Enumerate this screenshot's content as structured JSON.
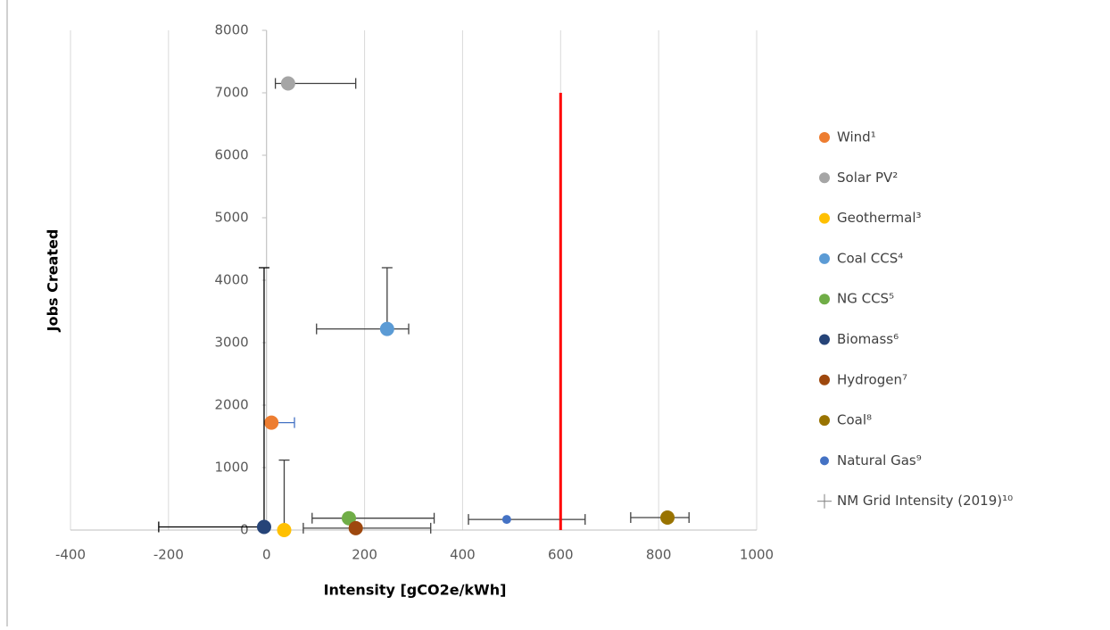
{
  "chart_data": {
    "type": "scatter",
    "x_label": "Intensity [gCO2e/kWh]",
    "y_label": "Jobs Created",
    "xlim": [
      -400,
      1000
    ],
    "xticks": [
      -400,
      -200,
      0,
      200,
      400,
      600,
      800,
      1000
    ],
    "ylim": [
      0,
      8000
    ],
    "yticks": [
      0,
      1000,
      2000,
      3000,
      4000,
      5000,
      6000,
      7000,
      8000
    ],
    "grid": true,
    "legend": "right",
    "series": [
      {
        "name": "Wind¹",
        "color": "#ED7D31",
        "error_color": "#4472C4",
        "x": [
          10
        ],
        "y": [
          1720
        ],
        "x_range": [
          10,
          57
        ]
      },
      {
        "name": "Solar PV²",
        "color": "#A5A5A5",
        "error_color": "#404040",
        "x": [
          44
        ],
        "y": [
          7150
        ],
        "x_range": [
          18,
          182
        ]
      },
      {
        "name": "Geothermal³",
        "color": "#FFC000",
        "error_color": "#404040",
        "x": [
          36
        ],
        "y": [
          0
        ],
        "y_range": [
          0,
          1120
        ]
      },
      {
        "name": "Coal CCS⁴",
        "color": "#5B9BD5",
        "error_color": "#404040",
        "x": [
          246
        ],
        "y": [
          3220
        ],
        "x_range": [
          102,
          290
        ],
        "y_range": [
          3220,
          4200
        ]
      },
      {
        "name": "NG CCS⁵",
        "color": "#70AD47",
        "error_color": "#404040",
        "x": [
          168
        ],
        "y": [
          190
        ],
        "x_range": [
          93,
          342
        ]
      },
      {
        "name": "Biomass⁶",
        "color": "#264478",
        "error_color": "#000000",
        "x": [
          -5
        ],
        "y": [
          50
        ],
        "x_range": [
          -220,
          0
        ],
        "y_range": [
          50,
          4200
        ]
      },
      {
        "name": "Hydrogen⁷",
        "color": "#9E480E",
        "error_color": "#404040",
        "x": [
          182
        ],
        "y": [
          30
        ],
        "x_range": [
          75,
          335
        ]
      },
      {
        "name": "Coal⁸",
        "color": "#997300",
        "error_color": "#404040",
        "x": [
          818
        ],
        "y": [
          200
        ],
        "x_range": [
          743,
          862
        ]
      },
      {
        "name": "Natural Gas⁹",
        "color": "#4472C4",
        "error_color": "#404040",
        "x": [
          490
        ],
        "y": [
          170
        ],
        "x_range": [
          412,
          650
        ],
        "small": true
      },
      {
        "name": "NM Grid Intensity (2019)¹⁰",
        "color": "#FF0000",
        "mode": "line",
        "x": [
          600,
          600
        ],
        "y": [
          0,
          7000
        ]
      }
    ]
  }
}
